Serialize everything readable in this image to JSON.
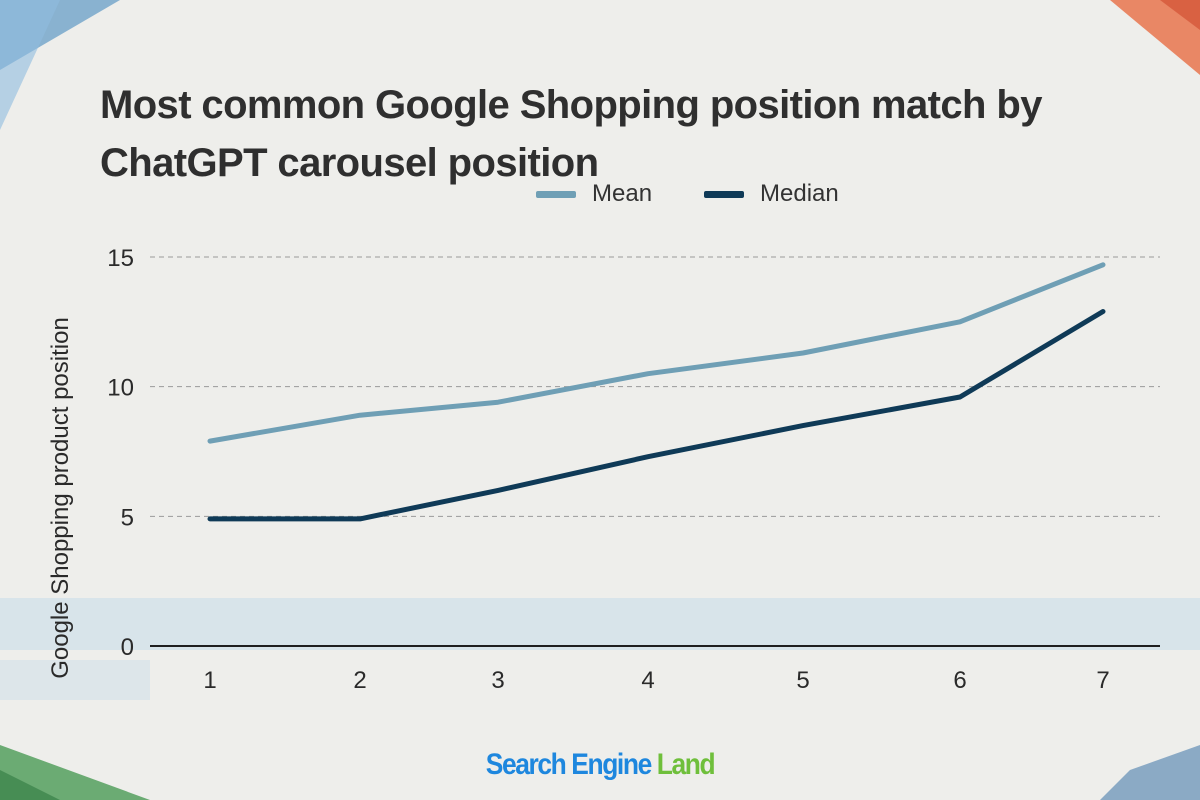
{
  "chart_data": {
    "type": "line",
    "title": "Most common Google Shopping position match by ChatGPT carousel position",
    "xlabel": "",
    "ylabel": "Google Shopping product position",
    "x": [
      1,
      2,
      3,
      4,
      5,
      6,
      7
    ],
    "ylim": [
      0,
      15
    ],
    "yticks": [
      0,
      5,
      10,
      15
    ],
    "grid": true,
    "legend_position": "top-center",
    "series": [
      {
        "name": "Mean",
        "color": "#6f9fb5",
        "values": [
          7.9,
          8.9,
          9.4,
          10.5,
          11.3,
          12.5,
          14.7
        ]
      },
      {
        "name": "Median",
        "color": "#0f3a57",
        "values": [
          4.9,
          4.9,
          6.0,
          7.3,
          8.5,
          9.6,
          12.9
        ]
      }
    ]
  },
  "brand": {
    "part1": "Search Engine",
    "part2": "Land",
    "color1": "#1e87de",
    "color2": "#6fbf3b"
  }
}
